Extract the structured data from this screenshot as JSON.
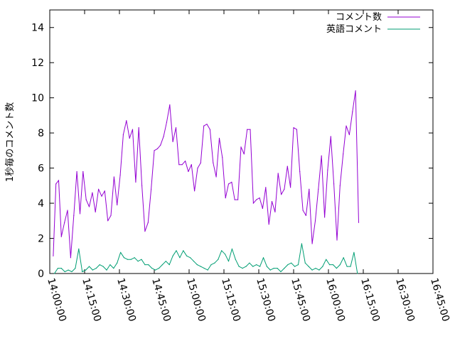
{
  "chart_data": {
    "type": "line",
    "title": "",
    "xlabel": "",
    "ylabel": "1秒毎のコメント数",
    "xlim": [
      "14:00:00",
      "16:45:00"
    ],
    "ylim": [
      0,
      15
    ],
    "x_ticks": [
      "14:00:00",
      "14:15:00",
      "14:30:00",
      "14:45:00",
      "15:00:00",
      "15:15:00",
      "15:30:00",
      "15:45:00",
      "16:00:00",
      "16:15:00",
      "16:30:00",
      "16:45:00"
    ],
    "y_ticks": [
      "0",
      "2",
      "4",
      "6",
      "8",
      "10",
      "12",
      "14"
    ],
    "grid": false,
    "legend_position": "top-right",
    "series": [
      {
        "name": "コメント数",
        "color": "#9400d3",
        "points": [
          [
            "14:01:30",
            1.0
          ],
          [
            "14:02:40",
            5.1
          ],
          [
            "14:03:50",
            5.3
          ],
          [
            "14:05:00",
            2.1
          ],
          [
            "14:06:20",
            2.9
          ],
          [
            "14:07:40",
            3.6
          ],
          [
            "14:09:00",
            0.9
          ],
          [
            "14:10:20",
            3.3
          ],
          [
            "14:11:40",
            5.8
          ],
          [
            "14:13:00",
            3.4
          ],
          [
            "14:14:20",
            5.8
          ],
          [
            "14:15:40",
            4.2
          ],
          [
            "14:17:00",
            3.8
          ],
          [
            "14:18:20",
            4.6
          ],
          [
            "14:19:40",
            3.5
          ],
          [
            "14:21:00",
            4.8
          ],
          [
            "14:22:20",
            4.4
          ],
          [
            "14:23:40",
            4.7
          ],
          [
            "14:25:00",
            3.0
          ],
          [
            "14:26:20",
            3.3
          ],
          [
            "14:27:40",
            5.5
          ],
          [
            "14:29:00",
            3.9
          ],
          [
            "14:30:20",
            5.6
          ],
          [
            "14:31:40",
            7.9
          ],
          [
            "14:33:00",
            8.7
          ],
          [
            "14:34:20",
            7.7
          ],
          [
            "14:35:40",
            8.2
          ],
          [
            "14:37:00",
            5.2
          ],
          [
            "14:38:20",
            8.3
          ],
          [
            "14:39:40",
            5.0
          ],
          [
            "14:41:00",
            2.4
          ],
          [
            "14:42:20",
            2.9
          ],
          [
            "14:43:40",
            4.8
          ],
          [
            "14:45:00",
            7.0
          ],
          [
            "14:46:20",
            7.1
          ],
          [
            "14:47:40",
            7.3
          ],
          [
            "14:49:00",
            7.8
          ],
          [
            "14:50:20",
            8.6
          ],
          [
            "14:51:40",
            9.6
          ],
          [
            "14:53:00",
            7.5
          ],
          [
            "14:54:20",
            8.3
          ],
          [
            "14:55:40",
            6.2
          ],
          [
            "14:57:00",
            6.2
          ],
          [
            "14:58:20",
            6.4
          ],
          [
            "14:59:40",
            5.8
          ],
          [
            "15:01:00",
            6.2
          ],
          [
            "15:02:20",
            4.7
          ],
          [
            "15:03:40",
            6.0
          ],
          [
            "15:05:00",
            6.3
          ],
          [
            "15:06:20",
            8.4
          ],
          [
            "15:07:40",
            8.5
          ],
          [
            "15:09:00",
            8.2
          ],
          [
            "15:10:20",
            6.3
          ],
          [
            "15:11:40",
            5.5
          ],
          [
            "15:13:00",
            7.7
          ],
          [
            "15:14:20",
            6.6
          ],
          [
            "15:15:40",
            4.3
          ],
          [
            "15:17:00",
            5.1
          ],
          [
            "15:18:20",
            5.2
          ],
          [
            "15:19:40",
            4.2
          ],
          [
            "15:21:00",
            4.2
          ],
          [
            "15:22:20",
            7.2
          ],
          [
            "15:23:40",
            6.8
          ],
          [
            "15:25:00",
            8.2
          ],
          [
            "15:26:20",
            8.2
          ],
          [
            "15:27:40",
            4.0
          ],
          [
            "15:29:00",
            4.2
          ],
          [
            "15:30:20",
            4.3
          ],
          [
            "15:31:40",
            3.7
          ],
          [
            "15:33:00",
            4.9
          ],
          [
            "15:34:20",
            2.8
          ],
          [
            "15:35:40",
            4.1
          ],
          [
            "15:37:00",
            3.5
          ],
          [
            "15:38:20",
            5.7
          ],
          [
            "15:39:40",
            4.5
          ],
          [
            "15:41:00",
            4.8
          ],
          [
            "15:42:20",
            6.1
          ],
          [
            "15:43:40",
            4.9
          ],
          [
            "15:45:00",
            8.3
          ],
          [
            "15:46:20",
            8.2
          ],
          [
            "15:47:40",
            5.8
          ],
          [
            "15:49:00",
            3.6
          ],
          [
            "15:50:20",
            3.3
          ],
          [
            "15:51:40",
            4.8
          ],
          [
            "15:53:00",
            1.7
          ],
          [
            "15:54:20",
            3.0
          ],
          [
            "15:55:40",
            4.8
          ],
          [
            "15:57:00",
            6.7
          ],
          [
            "15:58:20",
            3.2
          ],
          [
            "15:59:40",
            5.9
          ],
          [
            "16:01:00",
            7.8
          ],
          [
            "16:02:20",
            5.1
          ],
          [
            "16:03:40",
            1.9
          ],
          [
            "16:05:00",
            5.0
          ],
          [
            "16:06:20",
            6.8
          ],
          [
            "16:07:40",
            8.4
          ],
          [
            "16:09:00",
            7.9
          ],
          [
            "16:10:20",
            9.2
          ],
          [
            "16:11:40",
            10.4
          ],
          [
            "16:13:00",
            2.9
          ]
        ]
      },
      {
        "name": "英語コメント",
        "color": "#009e73",
        "points": [
          [
            "14:02:00",
            0.0
          ],
          [
            "14:03:30",
            0.3
          ],
          [
            "14:05:00",
            0.3
          ],
          [
            "14:06:30",
            0.1
          ],
          [
            "14:08:00",
            0.2
          ],
          [
            "14:09:30",
            0.1
          ],
          [
            "14:11:00",
            0.3
          ],
          [
            "14:12:30",
            1.4
          ],
          [
            "14:14:00",
            0.1
          ],
          [
            "14:15:30",
            0.2
          ],
          [
            "14:17:00",
            0.4
          ],
          [
            "14:18:30",
            0.2
          ],
          [
            "14:20:00",
            0.3
          ],
          [
            "14:21:30",
            0.5
          ],
          [
            "14:23:00",
            0.4
          ],
          [
            "14:24:30",
            0.2
          ],
          [
            "14:26:00",
            0.5
          ],
          [
            "14:27:30",
            0.3
          ],
          [
            "14:29:00",
            0.6
          ],
          [
            "14:30:30",
            1.2
          ],
          [
            "14:32:00",
            0.9
          ],
          [
            "14:33:30",
            0.8
          ],
          [
            "14:35:00",
            0.8
          ],
          [
            "14:36:30",
            0.9
          ],
          [
            "14:38:00",
            0.7
          ],
          [
            "14:39:30",
            0.8
          ],
          [
            "14:41:00",
            0.5
          ],
          [
            "14:42:30",
            0.5
          ],
          [
            "14:44:00",
            0.3
          ],
          [
            "14:45:30",
            0.2
          ],
          [
            "14:47:00",
            0.3
          ],
          [
            "14:48:30",
            0.5
          ],
          [
            "14:50:00",
            0.7
          ],
          [
            "14:51:30",
            0.5
          ],
          [
            "14:53:00",
            1.0
          ],
          [
            "14:54:30",
            1.3
          ],
          [
            "14:56:00",
            0.9
          ],
          [
            "14:57:30",
            1.3
          ],
          [
            "14:59:00",
            1.0
          ],
          [
            "15:00:30",
            0.9
          ],
          [
            "15:02:00",
            0.7
          ],
          [
            "15:03:30",
            0.5
          ],
          [
            "15:05:00",
            0.4
          ],
          [
            "15:06:30",
            0.3
          ],
          [
            "15:08:00",
            0.2
          ],
          [
            "15:09:30",
            0.5
          ],
          [
            "15:11:00",
            0.6
          ],
          [
            "15:12:30",
            0.8
          ],
          [
            "15:14:00",
            1.3
          ],
          [
            "15:15:30",
            1.1
          ],
          [
            "15:17:00",
            0.7
          ],
          [
            "15:18:30",
            1.4
          ],
          [
            "15:20:00",
            0.8
          ],
          [
            "15:21:30",
            0.4
          ],
          [
            "15:23:00",
            0.3
          ],
          [
            "15:24:30",
            0.4
          ],
          [
            "15:26:00",
            0.6
          ],
          [
            "15:27:30",
            0.4
          ],
          [
            "15:29:00",
            0.5
          ],
          [
            "15:30:30",
            0.4
          ],
          [
            "15:32:00",
            0.9
          ],
          [
            "15:33:30",
            0.4
          ],
          [
            "15:35:00",
            0.2
          ],
          [
            "15:36:30",
            0.3
          ],
          [
            "15:38:00",
            0.3
          ],
          [
            "15:39:30",
            0.1
          ],
          [
            "15:41:00",
            0.3
          ],
          [
            "15:42:30",
            0.5
          ],
          [
            "15:44:00",
            0.6
          ],
          [
            "15:45:30",
            0.4
          ],
          [
            "15:47:00",
            0.5
          ],
          [
            "15:48:30",
            1.7
          ],
          [
            "15:50:00",
            0.6
          ],
          [
            "15:51:30",
            0.4
          ],
          [
            "15:53:00",
            0.2
          ],
          [
            "15:54:30",
            0.3
          ],
          [
            "15:56:00",
            0.2
          ],
          [
            "15:57:30",
            0.4
          ],
          [
            "15:59:00",
            0.8
          ],
          [
            "16:00:30",
            0.5
          ],
          [
            "16:02:00",
            0.5
          ],
          [
            "16:03:30",
            0.3
          ],
          [
            "16:05:00",
            0.5
          ],
          [
            "16:06:30",
            0.9
          ],
          [
            "16:08:00",
            0.4
          ],
          [
            "16:09:30",
            0.4
          ],
          [
            "16:11:00",
            1.2
          ],
          [
            "16:12:30",
            0.0
          ]
        ]
      }
    ]
  }
}
